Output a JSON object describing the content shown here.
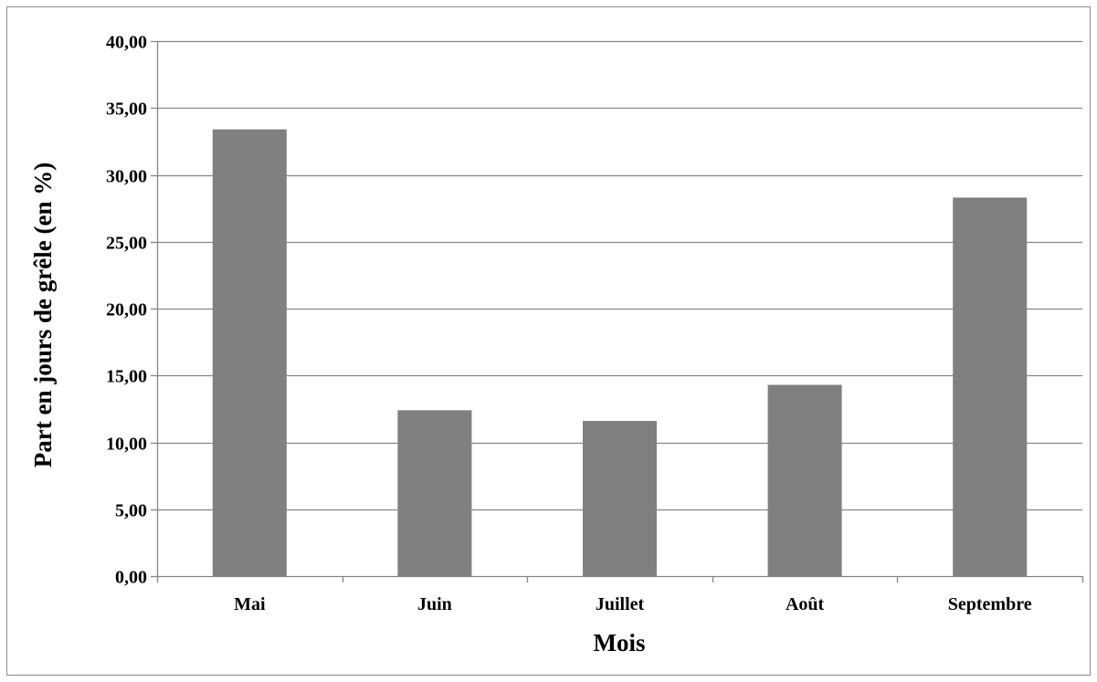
{
  "chart_data": {
    "type": "bar",
    "title": "",
    "xlabel": "Mois",
    "ylabel": "Part en jours de grêle (en %)",
    "categories": [
      "Mai",
      "Juin",
      "Juillet",
      "Août",
      "Septembre"
    ],
    "values": [
      33.4,
      12.4,
      11.6,
      14.3,
      28.3
    ],
    "ylim": [
      0,
      40
    ],
    "yticks": [
      0,
      5,
      10,
      15,
      20,
      25,
      30,
      35,
      40
    ],
    "ytick_labels": [
      "0,00",
      "5,00",
      "10,00",
      "15,00",
      "20,00",
      "25,00",
      "30,00",
      "35,00",
      "40,00"
    ],
    "grid": true,
    "legend": "none",
    "bar_color": "#808080",
    "grid_color": "#868686"
  }
}
